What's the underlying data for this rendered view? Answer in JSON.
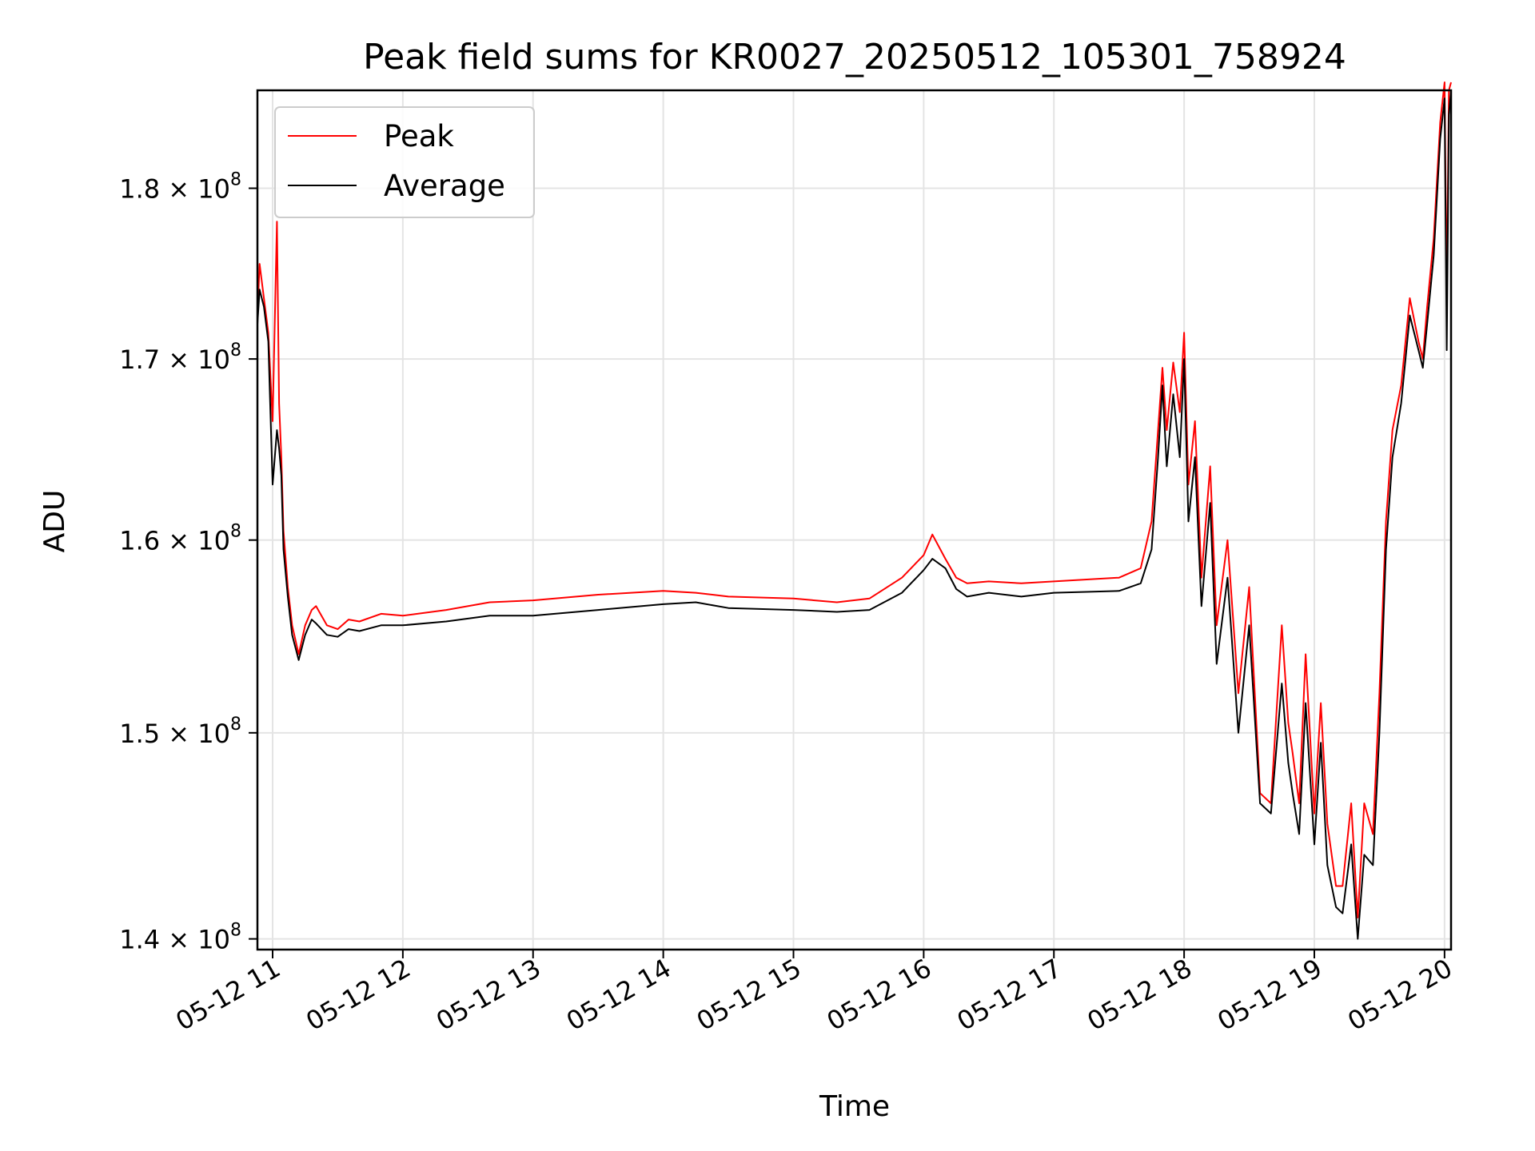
{
  "chart_data": {
    "type": "line",
    "title": "Peak field sums for KR0027_20250512_105301_758924",
    "xlabel": "Time",
    "ylabel": "ADU",
    "y_scale": "log",
    "xlim": [
      "2025-05-12 10:53",
      "2025-05-12 20:03"
    ],
    "ylim": [
      139500000,
      186000000
    ],
    "grid": true,
    "legend_position": "upper-left",
    "x_ticks": [
      "2025-05-12 11:00",
      "2025-05-12 12:00",
      "2025-05-12 13:00",
      "2025-05-12 14:00",
      "2025-05-12 15:00",
      "2025-05-12 16:00",
      "2025-05-12 17:00",
      "2025-05-12 18:00",
      "2025-05-12 19:00",
      "2025-05-12 20:00"
    ],
    "x_tick_labels": [
      "05-12 11",
      "05-12 12",
      "05-12 13",
      "05-12 14",
      "05-12 15",
      "05-12 16",
      "05-12 17",
      "05-12 18",
      "05-12 19",
      "05-12 20"
    ],
    "y_ticks": [
      {
        "value": 140000000,
        "mantissa": "1.4",
        "exponent": "8"
      },
      {
        "value": 150000000,
        "mantissa": "1.5",
        "exponent": "8"
      },
      {
        "value": 160000000,
        "mantissa": "1.6",
        "exponent": "8"
      },
      {
        "value": 170000000,
        "mantissa": "1.7",
        "exponent": "8"
      },
      {
        "value": 180000000,
        "mantissa": "1.8",
        "exponent": "8"
      }
    ],
    "series": [
      {
        "name": "Peak",
        "color": "#ff0000",
        "x": [
          "2025-05-12 10:53",
          "2025-05-12 10:54",
          "2025-05-12 10:56",
          "2025-05-12 10:58",
          "2025-05-12 11:00",
          "2025-05-12 11:02",
          "2025-05-12 11:03",
          "2025-05-12 11:04",
          "2025-05-12 11:05",
          "2025-05-12 11:07",
          "2025-05-12 11:09",
          "2025-05-12 11:12",
          "2025-05-12 11:15",
          "2025-05-12 11:18",
          "2025-05-12 11:20",
          "2025-05-12 11:25",
          "2025-05-12 11:30",
          "2025-05-12 11:35",
          "2025-05-12 11:40",
          "2025-05-12 11:50",
          "2025-05-12 12:00",
          "2025-05-12 12:20",
          "2025-05-12 12:40",
          "2025-05-12 13:00",
          "2025-05-12 13:30",
          "2025-05-12 14:00",
          "2025-05-12 14:15",
          "2025-05-12 14:30",
          "2025-05-12 15:00",
          "2025-05-12 15:20",
          "2025-05-12 15:35",
          "2025-05-12 15:50",
          "2025-05-12 16:00",
          "2025-05-12 16:04",
          "2025-05-12 16:10",
          "2025-05-12 16:15",
          "2025-05-12 16:20",
          "2025-05-12 16:30",
          "2025-05-12 16:45",
          "2025-05-12 17:00",
          "2025-05-12 17:30",
          "2025-05-12 17:40",
          "2025-05-12 17:45",
          "2025-05-12 17:48",
          "2025-05-12 17:50",
          "2025-05-12 17:52",
          "2025-05-12 17:55",
          "2025-05-12 17:58",
          "2025-05-12 18:00",
          "2025-05-12 18:02",
          "2025-05-12 18:05",
          "2025-05-12 18:08",
          "2025-05-12 18:12",
          "2025-05-12 18:15",
          "2025-05-12 18:20",
          "2025-05-12 18:25",
          "2025-05-12 18:30",
          "2025-05-12 18:35",
          "2025-05-12 18:40",
          "2025-05-12 18:45",
          "2025-05-12 18:48",
          "2025-05-12 18:50",
          "2025-05-12 18:53",
          "2025-05-12 18:56",
          "2025-05-12 19:00",
          "2025-05-12 19:03",
          "2025-05-12 19:06",
          "2025-05-12 19:10",
          "2025-05-12 19:13",
          "2025-05-12 19:17",
          "2025-05-12 19:20",
          "2025-05-12 19:23",
          "2025-05-12 19:27",
          "2025-05-12 19:30",
          "2025-05-12 19:33",
          "2025-05-12 19:36",
          "2025-05-12 19:40",
          "2025-05-12 19:44",
          "2025-05-12 19:48",
          "2025-05-12 19:50",
          "2025-05-12 19:52",
          "2025-05-12 19:55",
          "2025-05-12 19:58",
          "2025-05-12 20:00",
          "2025-05-12 20:01",
          "2025-05-12 20:02",
          "2025-05-12 20:03"
        ],
        "values": [
          172500000,
          175500000,
          173500000,
          171500000,
          166500000,
          178000000,
          167500000,
          164500000,
          160500000,
          157500000,
          155500000,
          154000000,
          155500000,
          156300000,
          156500000,
          155500000,
          155300000,
          155800000,
          155700000,
          156100000,
          156000000,
          156300000,
          156700000,
          156800000,
          157100000,
          157300000,
          157200000,
          157000000,
          156900000,
          156700000,
          156900000,
          158000000,
          159200000,
          160300000,
          159000000,
          158000000,
          157700000,
          157800000,
          157700000,
          157800000,
          158000000,
          158500000,
          161000000,
          166000000,
          169500000,
          166000000,
          169800000,
          167000000,
          171500000,
          163000000,
          166500000,
          158000000,
          164000000,
          155500000,
          160000000,
          152000000,
          157500000,
          147000000,
          146500000,
          155500000,
          150500000,
          149000000,
          146500000,
          154000000,
          146000000,
          151500000,
          145500000,
          142500000,
          142500000,
          146500000,
          141000000,
          146500000,
          145000000,
          152000000,
          161000000,
          166000000,
          168500000,
          173500000,
          171000000,
          170000000,
          173000000,
          177000000,
          184000000,
          186500000,
          173500000,
          186000000,
          186500000
        ]
      },
      {
        "name": "Average",
        "color": "#000000",
        "x": [
          "2025-05-12 10:53",
          "2025-05-12 10:54",
          "2025-05-12 10:56",
          "2025-05-12 10:58",
          "2025-05-12 11:00",
          "2025-05-12 11:02",
          "2025-05-12 11:03",
          "2025-05-12 11:04",
          "2025-05-12 11:05",
          "2025-05-12 11:07",
          "2025-05-12 11:09",
          "2025-05-12 11:12",
          "2025-05-12 11:15",
          "2025-05-12 11:18",
          "2025-05-12 11:20",
          "2025-05-12 11:25",
          "2025-05-12 11:30",
          "2025-05-12 11:35",
          "2025-05-12 11:40",
          "2025-05-12 11:50",
          "2025-05-12 12:00",
          "2025-05-12 12:20",
          "2025-05-12 12:40",
          "2025-05-12 13:00",
          "2025-05-12 13:30",
          "2025-05-12 14:00",
          "2025-05-12 14:15",
          "2025-05-12 14:30",
          "2025-05-12 15:00",
          "2025-05-12 15:20",
          "2025-05-12 15:35",
          "2025-05-12 15:50",
          "2025-05-12 16:00",
          "2025-05-12 16:04",
          "2025-05-12 16:10",
          "2025-05-12 16:15",
          "2025-05-12 16:20",
          "2025-05-12 16:30",
          "2025-05-12 16:45",
          "2025-05-12 17:00",
          "2025-05-12 17:30",
          "2025-05-12 17:40",
          "2025-05-12 17:45",
          "2025-05-12 17:48",
          "2025-05-12 17:50",
          "2025-05-12 17:52",
          "2025-05-12 17:55",
          "2025-05-12 17:58",
          "2025-05-12 18:00",
          "2025-05-12 18:02",
          "2025-05-12 18:05",
          "2025-05-12 18:08",
          "2025-05-12 18:12",
          "2025-05-12 18:15",
          "2025-05-12 18:20",
          "2025-05-12 18:25",
          "2025-05-12 18:30",
          "2025-05-12 18:35",
          "2025-05-12 18:40",
          "2025-05-12 18:45",
          "2025-05-12 18:48",
          "2025-05-12 18:50",
          "2025-05-12 18:53",
          "2025-05-12 18:56",
          "2025-05-12 19:00",
          "2025-05-12 19:03",
          "2025-05-12 19:06",
          "2025-05-12 19:10",
          "2025-05-12 19:13",
          "2025-05-12 19:17",
          "2025-05-12 19:20",
          "2025-05-12 19:23",
          "2025-05-12 19:27",
          "2025-05-12 19:30",
          "2025-05-12 19:33",
          "2025-05-12 19:36",
          "2025-05-12 19:40",
          "2025-05-12 19:44",
          "2025-05-12 19:48",
          "2025-05-12 19:50",
          "2025-05-12 19:52",
          "2025-05-12 19:55",
          "2025-05-12 19:58",
          "2025-05-12 20:00",
          "2025-05-12 20:01",
          "2025-05-12 20:02",
          "2025-05-12 20:03"
        ],
        "values": [
          172000000,
          174000000,
          173000000,
          171000000,
          163000000,
          166000000,
          165000000,
          163500000,
          159500000,
          157000000,
          155000000,
          153700000,
          155000000,
          155800000,
          155600000,
          155000000,
          154900000,
          155300000,
          155200000,
          155500000,
          155500000,
          155700000,
          156000000,
          156000000,
          156300000,
          156600000,
          156700000,
          156400000,
          156300000,
          156200000,
          156300000,
          157200000,
          158400000,
          159000000,
          158500000,
          157400000,
          157000000,
          157200000,
          157000000,
          157200000,
          157300000,
          157700000,
          159500000,
          164500000,
          168500000,
          164000000,
          168000000,
          164500000,
          170000000,
          161000000,
          164500000,
          156500000,
          162000000,
          153500000,
          158000000,
          150000000,
          155500000,
          146500000,
          146000000,
          152500000,
          148500000,
          147000000,
          145000000,
          151500000,
          144500000,
          149500000,
          143500000,
          141500000,
          141200000,
          144500000,
          140000000,
          144000000,
          143500000,
          150000000,
          159500000,
          164500000,
          167500000,
          172500000,
          170500000,
          169500000,
          172000000,
          176000000,
          183000000,
          185500000,
          170500000,
          184500000,
          186000000
        ]
      }
    ]
  }
}
